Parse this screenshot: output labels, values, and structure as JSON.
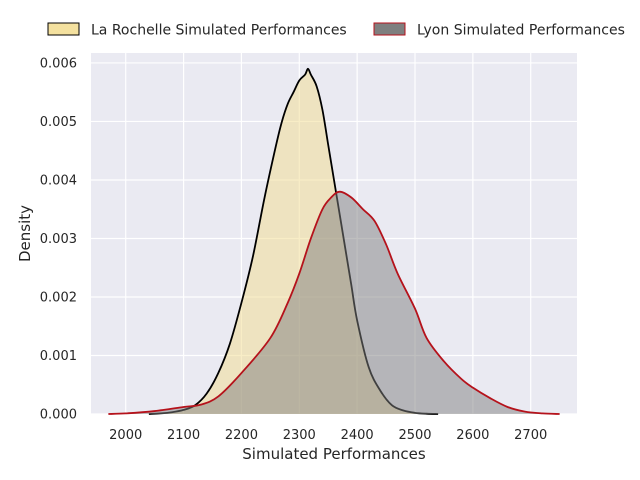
{
  "chart_data": {
    "type": "area",
    "xlabel": "Simulated Performances",
    "ylabel": "Density",
    "xlim": [
      1940,
      2780
    ],
    "ylim": [
      0,
      0.00617
    ],
    "x_ticks": [
      2000,
      2100,
      2200,
      2300,
      2400,
      2500,
      2600,
      2700
    ],
    "x_tick_labels": [
      "2000",
      "2100",
      "2200",
      "2300",
      "2400",
      "2500",
      "2600",
      "2700"
    ],
    "y_ticks": [
      0,
      0.001,
      0.002,
      0.003,
      0.004,
      0.005,
      0.006
    ],
    "y_tick_labels": [
      "0.000",
      "0.001",
      "0.002",
      "0.003",
      "0.004",
      "0.005",
      "0.006"
    ],
    "grid": true,
    "background_color": "#eaeaf2",
    "legend_position": "top",
    "series": [
      {
        "name": "La Rochelle Simulated Performances",
        "fill_color": "#f2dc8e",
        "line_color": "#000000",
        "x": [
          2040,
          2060,
          2080,
          2100,
          2120,
          2140,
          2160,
          2180,
          2200,
          2220,
          2240,
          2260,
          2270,
          2280,
          2290,
          2300,
          2310,
          2315,
          2320,
          2330,
          2340,
          2350,
          2360,
          2370,
          2380,
          2390,
          2400,
          2420,
          2440,
          2460,
          2480,
          2500,
          2520,
          2540
        ],
        "y": [
          0.0,
          1e-05,
          3e-05,
          7e-05,
          0.00015,
          0.00035,
          0.0007,
          0.0012,
          0.0019,
          0.0027,
          0.0037,
          0.0046,
          0.005,
          0.0053,
          0.0055,
          0.0057,
          0.0058,
          0.0059,
          0.0058,
          0.0056,
          0.0052,
          0.0046,
          0.004,
          0.0034,
          0.0028,
          0.0022,
          0.0016,
          0.0008,
          0.0004,
          0.00015,
          6e-05,
          2e-05,
          5e-06,
          0.0
        ]
      },
      {
        "name": "Lyon Simulated Performances",
        "fill_color": "#7f7f7f",
        "line_color": "#b5121b",
        "x": [
          1970,
          2000,
          2050,
          2100,
          2130,
          2160,
          2200,
          2250,
          2280,
          2300,
          2320,
          2340,
          2355,
          2370,
          2390,
          2410,
          2430,
          2450,
          2470,
          2500,
          2520,
          2550,
          2580,
          2600,
          2630,
          2660,
          2690,
          2720,
          2750
        ],
        "y": [
          0.0,
          1e-05,
          5e-05,
          0.00012,
          0.00016,
          0.0003,
          0.0007,
          0.0013,
          0.0019,
          0.0024,
          0.003,
          0.0035,
          0.0037,
          0.0038,
          0.0037,
          0.0035,
          0.0033,
          0.0029,
          0.0024,
          0.0018,
          0.0013,
          0.0009,
          0.0006,
          0.00045,
          0.00027,
          0.00012,
          4e-05,
          1e-05,
          0.0
        ]
      }
    ]
  }
}
